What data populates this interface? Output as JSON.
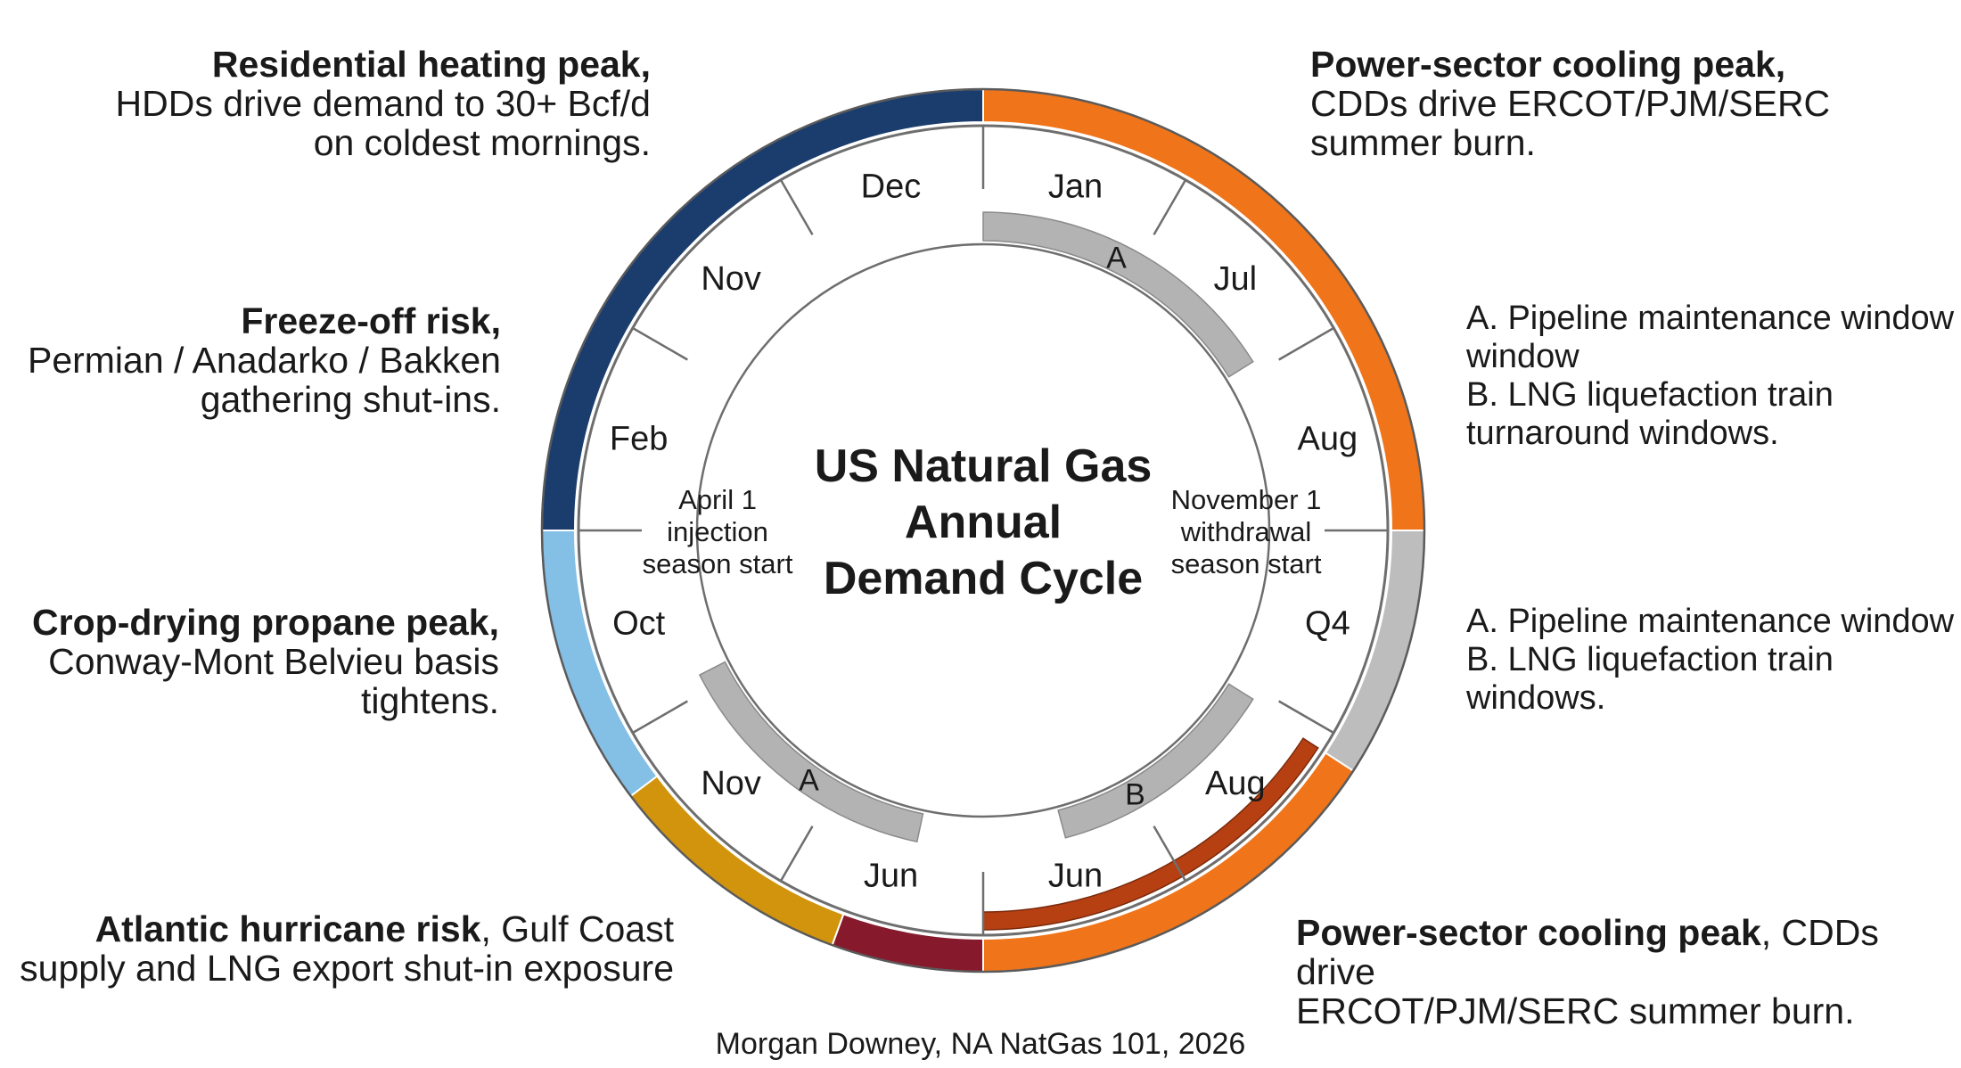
{
  "title_lines": [
    "US Natural Gas",
    "Annual",
    "Demand Cycle"
  ],
  "center_left": [
    "April 1",
    "injection",
    "season start"
  ],
  "center_right": [
    "November 1",
    "withdrawal",
    "season start"
  ],
  "outer_segments": [
    {
      "name": "residential-heating",
      "color": "#1a3d6e"
    },
    {
      "name": "freeze-off",
      "color": "#84bfe6"
    },
    {
      "name": "crop-drying",
      "color": "#d1940c"
    },
    {
      "name": "hurricane",
      "color": "#861a2c"
    },
    {
      "name": "power-cooling-bottom",
      "color": "#f07419"
    },
    {
      "name": "maintenance",
      "color": "#bdbdbd"
    },
    {
      "name": "power-cooling-top",
      "color": "#f07419"
    }
  ],
  "inner_arc_color": "#b64012",
  "bar_color": "#b3b3b3",
  "months": [
    "Jan",
    "Jul",
    "Aug",
    "Q4",
    "Aug",
    "Jun",
    "Jun",
    "Nov",
    "Oct",
    "Feb",
    "Nov",
    "Dec"
  ],
  "bar_markers": [
    "A",
    "B",
    "A"
  ],
  "annotations": {
    "residential": {
      "bold": "Residential heating peak,",
      "lines": [
        "HDDs drive demand to 30+ Bcf/d",
        "on coldest mornings."
      ]
    },
    "freeze_off": {
      "bold": "Freeze-off risk,",
      "lines": [
        "Permian / Anadarko / Bakken",
        "gathering shut-ins."
      ]
    },
    "crop_drying": {
      "bold": "Crop-drying propane peak,",
      "lines": [
        "Conway-Mont Belvieu basis",
        "tightens."
      ]
    },
    "hurricane": {
      "bold": "Atlantic hurricane risk",
      "rest": ", Gulf Coast",
      "line2": "supply and LNG export shut-in exposure"
    },
    "power_top": {
      "bold": "Power-sector cooling peak,",
      "lines": [
        "CDDs drive ERCOT/PJM/SERC",
        "summer burn."
      ]
    },
    "power_bottom": {
      "bold": "Power-sector cooling peak",
      "rest": ", CDDs drive",
      "line2": "ERCOT/PJM/SERC summer burn."
    }
  },
  "notes_top": [
    "A. Pipeline maintenance window",
    "window",
    "B. LNG liquefaction train",
    "turnaround windows."
  ],
  "notes_bottom": [
    "A. Pipeline maintenance window",
    "B. LNG liquefaction train",
    "windows."
  ],
  "credit": "Morgan Downey, NA NatGas 101, 2026"
}
